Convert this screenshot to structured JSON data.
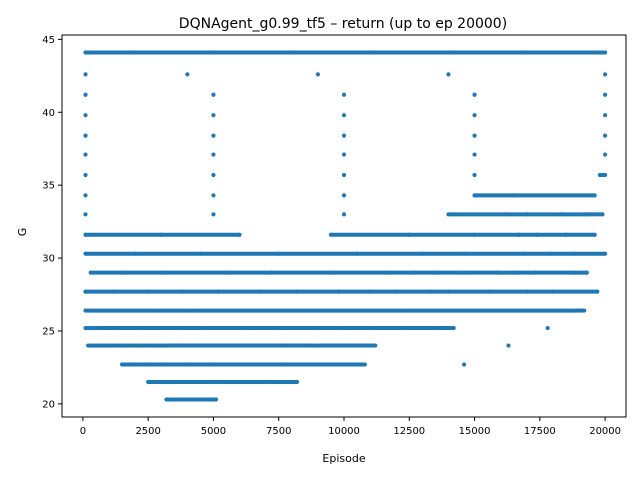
{
  "chart_data": {
    "type": "scatter",
    "title": "DQNAgent_g0.99_tf5 – return (up to ep 20000)",
    "xlabel": "Episode",
    "ylabel": "G",
    "xlim": [
      -800,
      20800
    ],
    "ylim": [
      19.1,
      45.3
    ],
    "xticks": [
      0,
      2500,
      5000,
      7500,
      10000,
      12500,
      15000,
      17500,
      20000
    ],
    "xtick_labels": [
      "0",
      "2500",
      "5000",
      "7500",
      "10000",
      "12500",
      "15000",
      "17500",
      "20000"
    ],
    "yticks": [
      20,
      25,
      30,
      35,
      40,
      45
    ],
    "ytick_labels": [
      "20",
      "25",
      "30",
      "35",
      "40",
      "45"
    ],
    "grid": false,
    "legend": "none",
    "marker_color": "#1f77b4",
    "series": [
      {
        "points": [
          [
            100,
            44.1
          ],
          [
            2000,
            44.1
          ],
          [
            5000,
            44.1
          ],
          [
            8000,
            44.1
          ],
          [
            11000,
            44.1
          ],
          [
            14000,
            44.1
          ],
          [
            17000,
            44.1
          ],
          [
            20000,
            44.1
          ],
          [
            100,
            42.6
          ],
          [
            4000,
            42.6
          ],
          [
            9000,
            42.6
          ],
          [
            14000,
            42.6
          ],
          [
            20000,
            42.6
          ],
          [
            100,
            41.2
          ],
          [
            5000,
            41.2
          ],
          [
            10000,
            41.2
          ],
          [
            15000,
            41.2
          ],
          [
            20000,
            41.2
          ],
          [
            100,
            39.8
          ],
          [
            5000,
            39.8
          ],
          [
            10000,
            39.8
          ],
          [
            15000,
            39.8
          ],
          [
            20000,
            39.8
          ],
          [
            100,
            38.4
          ],
          [
            5000,
            38.4
          ],
          [
            10000,
            38.4
          ],
          [
            15000,
            38.4
          ],
          [
            20000,
            38.4
          ],
          [
            100,
            37.1
          ],
          [
            5000,
            37.1
          ],
          [
            10000,
            37.1
          ],
          [
            15000,
            37.1
          ],
          [
            20000,
            37.1
          ],
          [
            100,
            35.7
          ],
          [
            5000,
            35.7
          ],
          [
            10000,
            35.7
          ],
          [
            15000,
            35.7
          ],
          [
            19800,
            35.7
          ],
          [
            20000,
            35.7
          ],
          [
            100,
            34.3
          ],
          [
            5000,
            34.3
          ],
          [
            10000,
            34.3
          ],
          [
            15000,
            34.3
          ],
          [
            16500,
            34.3
          ],
          [
            19600,
            34.3
          ],
          [
            100,
            33.0
          ],
          [
            5000,
            33.0
          ],
          [
            10000,
            33.0
          ],
          [
            14000,
            33.0
          ],
          [
            16200,
            33.0
          ],
          [
            17000,
            33.0
          ],
          [
            18300,
            33.0
          ],
          [
            19300,
            33.0
          ],
          [
            19900,
            33.0
          ],
          [
            100,
            31.6
          ],
          [
            3000,
            31.6
          ],
          [
            6000,
            31.6
          ],
          [
            9500,
            31.6
          ],
          [
            12500,
            31.6
          ],
          [
            15000,
            31.6
          ],
          [
            16700,
            31.6
          ],
          [
            17400,
            31.6
          ],
          [
            18500,
            31.6
          ],
          [
            19600,
            31.6
          ],
          [
            100,
            30.3
          ],
          [
            2000,
            30.3
          ],
          [
            4500,
            30.3
          ],
          [
            7500,
            30.3
          ],
          [
            10500,
            30.3
          ],
          [
            13000,
            30.3
          ],
          [
            14600,
            30.3
          ],
          [
            16900,
            30.3
          ],
          [
            17900,
            30.3
          ],
          [
            18800,
            30.3
          ],
          [
            20000,
            30.3
          ],
          [
            300,
            29.0
          ],
          [
            1500,
            29.0
          ],
          [
            3200,
            29.0
          ],
          [
            5500,
            29.0
          ],
          [
            7200,
            29.0
          ],
          [
            9500,
            29.0
          ],
          [
            11600,
            29.0
          ],
          [
            12700,
            29.0
          ],
          [
            13600,
            29.0
          ],
          [
            14600,
            29.0
          ],
          [
            15900,
            29.0
          ],
          [
            16500,
            29.0
          ],
          [
            17300,
            29.0
          ],
          [
            18800,
            29.0
          ],
          [
            19300,
            29.0
          ],
          [
            100,
            27.7
          ],
          [
            1200,
            27.7
          ],
          [
            2500,
            27.7
          ],
          [
            3800,
            27.7
          ],
          [
            5200,
            27.7
          ],
          [
            6800,
            27.7
          ],
          [
            8200,
            27.7
          ],
          [
            9800,
            27.7
          ],
          [
            11000,
            27.7
          ],
          [
            12000,
            27.7
          ],
          [
            13300,
            27.7
          ],
          [
            14000,
            27.7
          ],
          [
            15600,
            27.7
          ],
          [
            17000,
            27.7
          ],
          [
            18000,
            27.7
          ],
          [
            19700,
            27.7
          ],
          [
            100,
            26.4
          ],
          [
            900,
            26.4
          ],
          [
            1800,
            26.4
          ],
          [
            3000,
            26.4
          ],
          [
            4200,
            26.4
          ],
          [
            5600,
            26.4
          ],
          [
            7000,
            26.4
          ],
          [
            8600,
            26.4
          ],
          [
            10400,
            26.4
          ],
          [
            12100,
            26.4
          ],
          [
            13300,
            26.4
          ],
          [
            15300,
            26.4
          ],
          [
            16300,
            26.4
          ],
          [
            17700,
            26.4
          ],
          [
            18900,
            26.4
          ],
          [
            19200,
            26.4
          ],
          [
            100,
            25.2
          ],
          [
            600,
            25.2
          ],
          [
            1400,
            25.2
          ],
          [
            2300,
            25.2
          ],
          [
            3600,
            25.2
          ],
          [
            4700,
            25.2
          ],
          [
            6100,
            25.2
          ],
          [
            7500,
            25.2
          ],
          [
            8800,
            25.2
          ],
          [
            9800,
            25.2
          ],
          [
            11100,
            25.2
          ],
          [
            12400,
            25.2
          ],
          [
            13500,
            25.2
          ],
          [
            14200,
            25.2
          ],
          [
            17800,
            25.2
          ],
          [
            200,
            24.0
          ],
          [
            700,
            24.0
          ],
          [
            1100,
            24.0
          ],
          [
            1600,
            24.0
          ],
          [
            2200,
            24.0
          ],
          [
            2700,
            24.0
          ],
          [
            3200,
            24.0
          ],
          [
            3800,
            24.0
          ],
          [
            4500,
            24.0
          ],
          [
            5100,
            24.0
          ],
          [
            7700,
            24.0
          ],
          [
            8700,
            24.0
          ],
          [
            9000,
            24.0
          ],
          [
            11200,
            24.0
          ],
          [
            16300,
            24.0
          ],
          [
            1500,
            22.7
          ],
          [
            1800,
            22.7
          ],
          [
            2600,
            22.7
          ],
          [
            3100,
            22.7
          ],
          [
            4000,
            22.7
          ],
          [
            4800,
            22.7
          ],
          [
            7700,
            22.7
          ],
          [
            10800,
            22.7
          ],
          [
            14600,
            22.7
          ],
          [
            2500,
            21.5
          ],
          [
            4900,
            21.5
          ],
          [
            5200,
            21.5
          ],
          [
            6500,
            21.5
          ],
          [
            7000,
            21.5
          ],
          [
            8200,
            21.5
          ],
          [
            3200,
            20.3
          ],
          [
            5100,
            20.3
          ]
        ]
      }
    ]
  }
}
